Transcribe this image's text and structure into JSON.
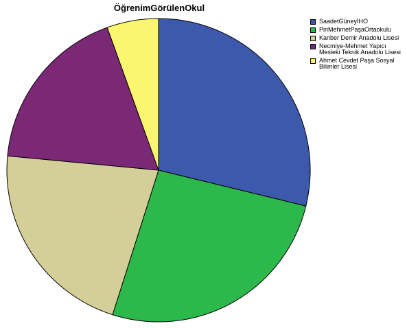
{
  "chart_data": {
    "type": "pie",
    "title": "ÖğrenimGörülenOkul",
    "categories": [
      "SaadetGüneyİHO",
      "PiriMehmetPaşaOrtaokulu",
      "Kanber Demir Anadolu Lisesi",
      "Necmiye-Mehmet Yapıcı Mesleki Teknik Anadolu Lisesi",
      "Ahmet Cevdet Paşa Sosyal Bilimler Lisesi"
    ],
    "values": [
      28.8,
      26.1,
      21.6,
      18.0,
      5.5
    ],
    "colors": [
      "#3d59ab",
      "#2db84b",
      "#d4ce98",
      "#7b2877",
      "#fbf66f"
    ],
    "legend_position": "right",
    "start_angle_deg": 0,
    "direction": "clockwise"
  }
}
